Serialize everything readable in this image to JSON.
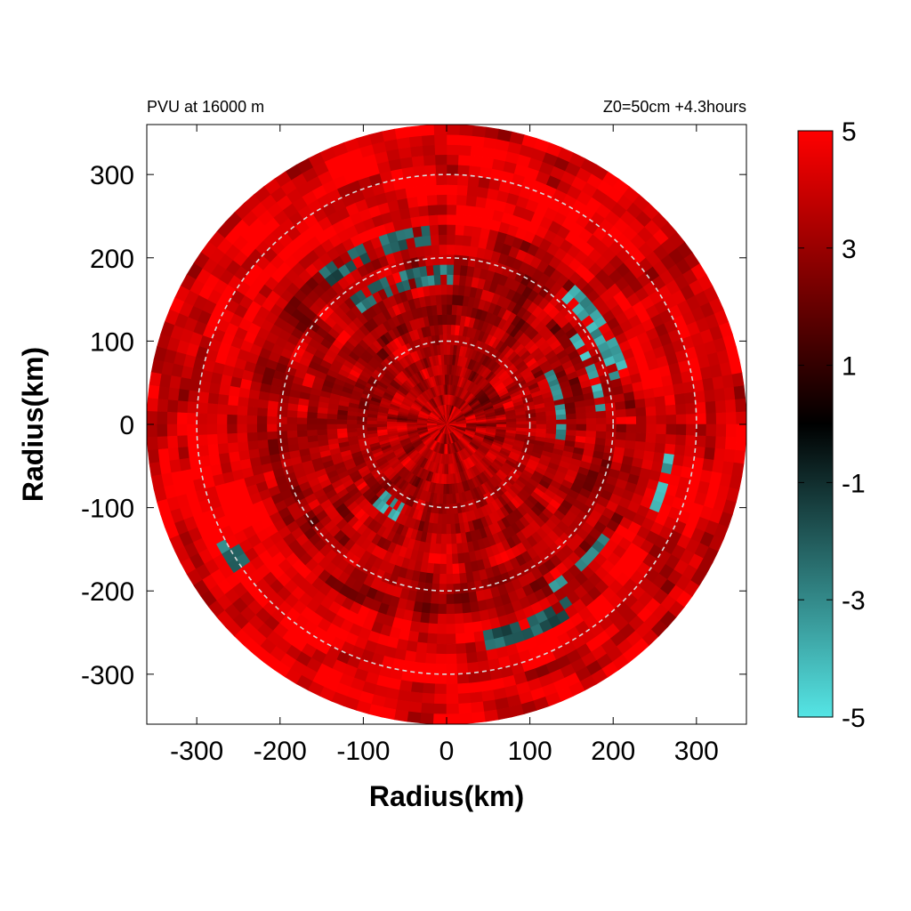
{
  "chart_data": {
    "type": "heatmap",
    "title_left": "PVU at 16000 m",
    "title_right": "Z0=50cm  +4.3hours",
    "xlabel": "Radius(km)",
    "ylabel": "Radius(km)",
    "xlim": [
      -360,
      360
    ],
    "ylim": [
      -360,
      360
    ],
    "x_ticks": [
      -300,
      -200,
      -100,
      0,
      100,
      200,
      300
    ],
    "y_ticks": [
      300,
      200,
      100,
      0,
      -100,
      -200,
      -300
    ],
    "x_tick_labels": [
      "-300",
      "-200",
      "-100",
      "0",
      "100",
      "200",
      "300"
    ],
    "y_tick_labels": [
      "300",
      "200",
      "100",
      "0",
      "-100",
      "-200",
      "-300"
    ],
    "domain_radius_km": 360,
    "reference_circles_km": [
      100,
      200,
      300
    ],
    "colorbar": {
      "min": -5,
      "max": 5,
      "ticks": [
        5,
        3,
        1,
        -1,
        -3,
        -5
      ],
      "tick_labels": [
        "5",
        "3",
        "1",
        "-1",
        "-3",
        "-5"
      ],
      "colors": {
        "max": "#ff0000",
        "mid": "#000000",
        "min": "#55e5e5"
      }
    },
    "features": [
      {
        "kind": "arc",
        "r": 215,
        "a1": 15,
        "a2": 48,
        "value": -3.5
      },
      {
        "kind": "arc",
        "r": 185,
        "a1": 5,
        "a2": 38,
        "value": -4
      },
      {
        "kind": "arc",
        "r": 140,
        "a1": -8,
        "a2": 28,
        "value": -3
      },
      {
        "kind": "arc",
        "r": 180,
        "a1": 88,
        "a2": 128,
        "value": -2.5
      },
      {
        "kind": "arc",
        "r": 230,
        "a1": 96,
        "a2": 130,
        "value": -2
      },
      {
        "kind": "arc",
        "r": 272,
        "a1": -22,
        "a2": -8,
        "value": -3.5
      },
      {
        "kind": "arc",
        "r": 235,
        "a1": -58,
        "a2": -35,
        "value": -3
      },
      {
        "kind": "arc",
        "r": 265,
        "a1": -80,
        "a2": -55,
        "value": -2
      },
      {
        "kind": "arc",
        "r": 118,
        "a1": -132,
        "a2": -118,
        "value": -3.5
      },
      {
        "kind": "arc",
        "r": 300,
        "a1": -152,
        "a2": -145,
        "value": -2.5
      }
    ]
  }
}
